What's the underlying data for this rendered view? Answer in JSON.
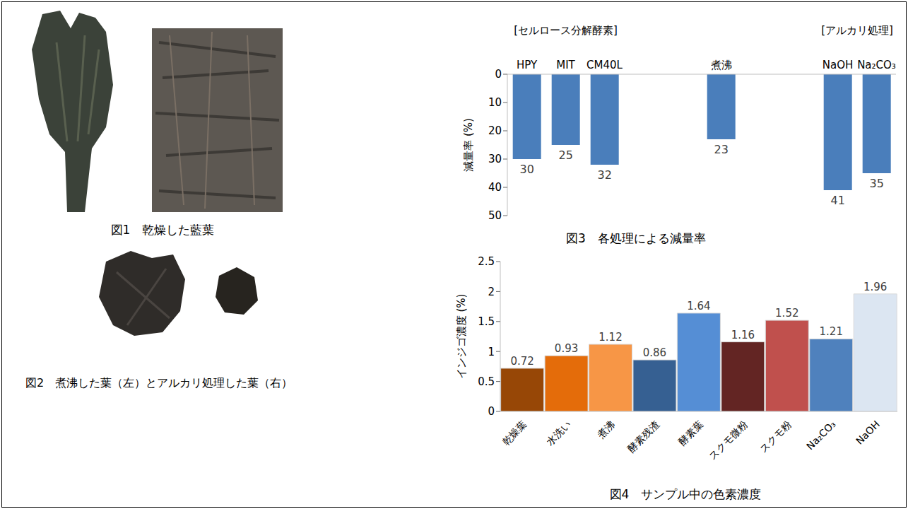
{
  "figures": [
    {
      "caption": "図1　乾燥した藍葉"
    },
    {
      "caption": "図2　煮沸した葉（左）とアルカリ処理した葉（右）"
    }
  ],
  "chart_data": [
    {
      "type": "bar",
      "title": "図3　各処理による減量率",
      "y_label": "減量率 (%)",
      "group_labels": [
        {
          "text": "[セルロース分解酵素]",
          "categories": [
            "HPY",
            "MIT",
            "CM40L"
          ]
        },
        {
          "text": "[アルカリ処理]",
          "categories": [
            "NaOH",
            "Na₂CO₃"
          ]
        }
      ],
      "categories": [
        "HPY",
        "MIT",
        "CM40L",
        null,
        null,
        "煮沸",
        null,
        null,
        "NaOH",
        "Na₂CO₃"
      ],
      "values": [
        30,
        25,
        32,
        null,
        null,
        23,
        null,
        null,
        41,
        35
      ],
      "color": "#4a7ebb",
      "ylim": [
        0,
        50
      ],
      "yticks": [
        0,
        10,
        20,
        30,
        40,
        50
      ],
      "data_labels": true,
      "grid": false
    },
    {
      "type": "bar",
      "title": "図4　サンプル中の色素濃度",
      "y_label": "インジゴ濃度 (%)",
      "categories": [
        "乾燥葉",
        "水洗い",
        "煮沸",
        "酵素残渣",
        "酵素葉",
        "スクモ微粉",
        "スクモ粉",
        "Na₂CO₃",
        "NaOH"
      ],
      "values": [
        0.72,
        0.93,
        1.12,
        0.86,
        1.64,
        1.16,
        1.52,
        1.21,
        1.96
      ],
      "colors": [
        "#974706",
        "#e46c0a",
        "#f79646",
        "#366092",
        "#558ed5",
        "#632523",
        "#c0504d",
        "#4f81bd",
        "#dce6f2"
      ],
      "ylim": [
        0,
        2.5
      ],
      "yticks": [
        0,
        0.5,
        1,
        1.5,
        2,
        2.5
      ],
      "data_labels": true,
      "grid": false
    }
  ]
}
